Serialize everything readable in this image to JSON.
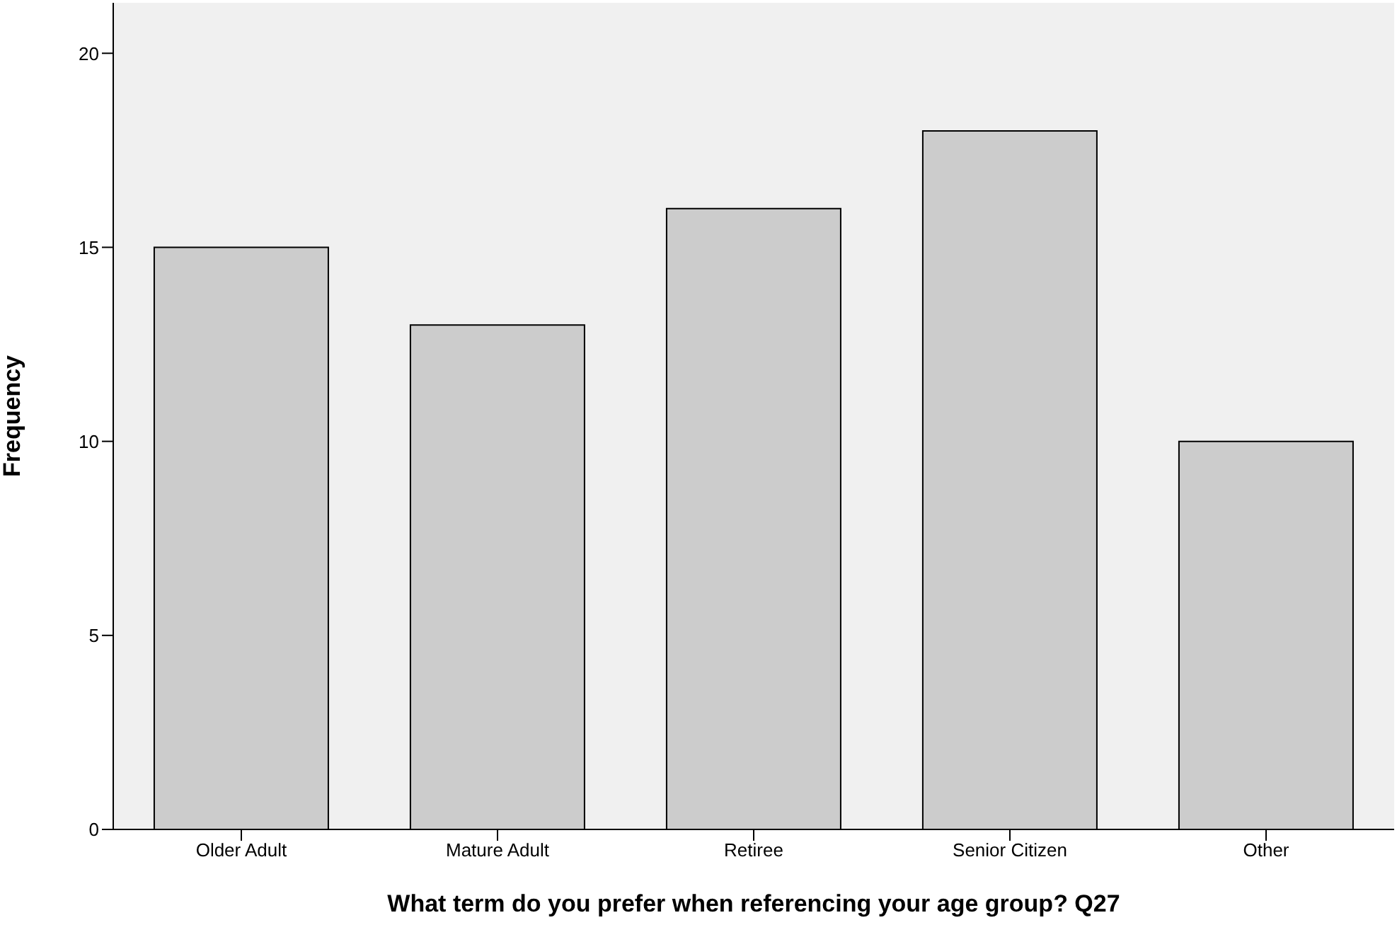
{
  "chart_data": {
    "type": "bar",
    "xlabel": "What term do you prefer when referencing your age group? Q27",
    "ylabel": "Frequency",
    "categories": [
      "Older Adult",
      "Mature Adult",
      "Retiree",
      "Senior Citizen",
      "Other"
    ],
    "values": [
      15,
      13,
      16,
      18,
      10
    ],
    "color": "#cccccc",
    "ylim": [
      0,
      21.3
    ],
    "yticks": [
      0,
      5,
      10,
      15,
      20
    ]
  }
}
